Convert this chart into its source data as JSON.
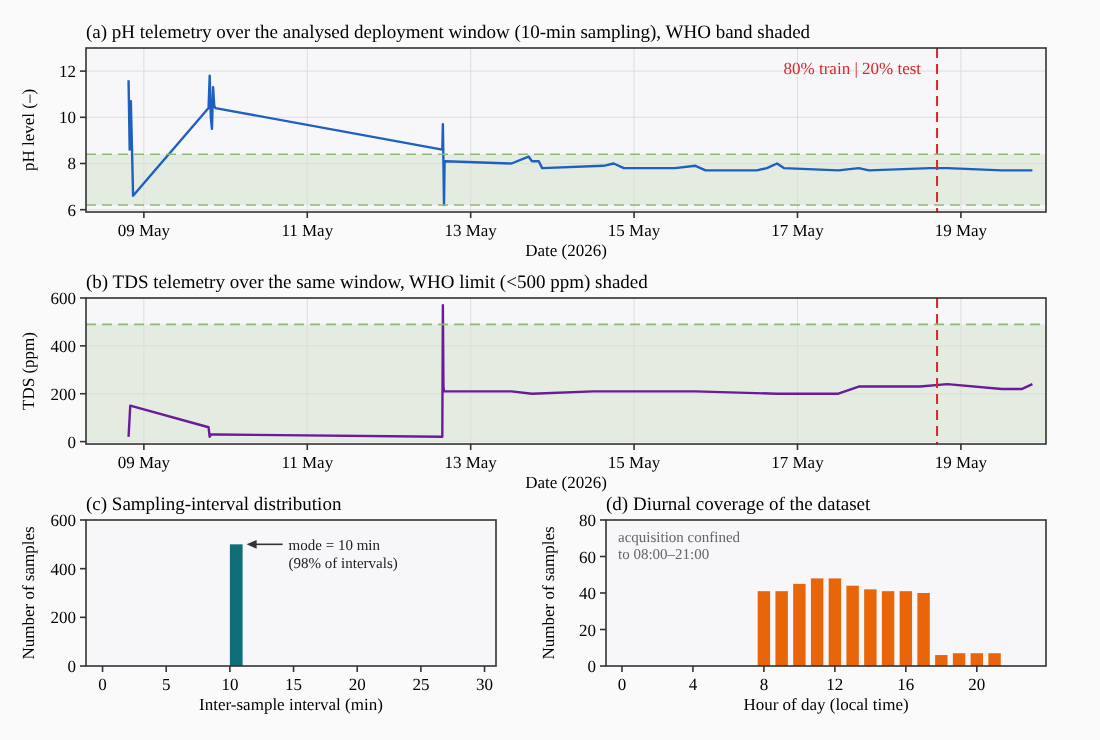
{
  "chart_data": [
    {
      "type": "line",
      "title": "(a) pH telemetry over the analysed deployment window (10-min sampling), WHO band shaded",
      "xlabel": "Date (2026)",
      "ylabel": "pH level (–)",
      "xlim": [
        "2026-05-08T07:00",
        "2026-05-20T01:00"
      ],
      "xticks": [
        {
          "value": "2026-05-09",
          "label": "09 May"
        },
        {
          "value": "2026-05-11",
          "label": "11 May"
        },
        {
          "value": "2026-05-13",
          "label": "13 May"
        },
        {
          "value": "2026-05-15",
          "label": "15 May"
        },
        {
          "value": "2026-05-17",
          "label": "17 May"
        },
        {
          "value": "2026-05-19",
          "label": "19 May"
        }
      ],
      "ylim": [
        5.9,
        13
      ],
      "yticks": [
        6,
        8,
        10,
        12
      ],
      "grid": true,
      "line_style": "solid",
      "series": [
        {
          "color": "#1f5fbf",
          "x": [
            "2026-05-08T19:30",
            "2026-05-08T19:50",
            "2026-05-08T20:10",
            "2026-05-08T20:30",
            "2026-05-08T20:50",
            "2026-05-09T19:00",
            "2026-05-09T19:20",
            "2026-05-09T19:40",
            "2026-05-09T20:00",
            "2026-05-09T20:20",
            "2026-05-09T20:40",
            "2026-05-09T21:00",
            "2026-05-12T15:40",
            "2026-05-12T15:50",
            "2026-05-12T16:00",
            "2026-05-12T16:10",
            "2026-05-12T16:20",
            "2026-05-12T16:40",
            "2026-05-13T12:00",
            "2026-05-13T17:00",
            "2026-05-13T18:00",
            "2026-05-13T20:00",
            "2026-05-13T21:00",
            "2026-05-14T15:00",
            "2026-05-14T18:00",
            "2026-05-14T21:00",
            "2026-05-15T12:00",
            "2026-05-15T18:00",
            "2026-05-15T21:00",
            "2026-05-16T12:00",
            "2026-05-16T15:00",
            "2026-05-16T18:00",
            "2026-05-16T20:00",
            "2026-05-17T12:00",
            "2026-05-17T18:00",
            "2026-05-17T21:00",
            "2026-05-18T15:00",
            "2026-05-18T18:00",
            "2026-05-18T20:00",
            "2026-05-19T12:00",
            "2026-05-19T21:00"
          ],
          "values": [
            11.6,
            8.6,
            10.7,
            8.7,
            6.6,
            10.4,
            11.8,
            10.0,
            9.5,
            11.3,
            10.5,
            10.4,
            8.6,
            9.7,
            8.0,
            6.2,
            8.1,
            8.1,
            8.0,
            8.3,
            8.1,
            8.1,
            7.8,
            7.9,
            8.0,
            7.8,
            7.8,
            7.9,
            7.7,
            7.7,
            7.8,
            8.0,
            7.8,
            7.7,
            7.8,
            7.7,
            7.8,
            7.8,
            7.8,
            7.7,
            7.7
          ]
        }
      ],
      "bands": [
        {
          "axis": "y",
          "from": 6.2,
          "to": 8.4,
          "color": "#e4ebe1"
        }
      ],
      "ref_lines": [
        {
          "axis": "x",
          "value": "2026-05-18T17:00",
          "label": "80% train | 20% test",
          "color": "#d62728",
          "line_style": "dashed"
        },
        {
          "axis": "y",
          "value": 8.4,
          "color": "#8fb87a",
          "line_style": "dashed"
        },
        {
          "axis": "y",
          "value": 6.2,
          "color": "#8fb87a",
          "line_style": "dashed"
        }
      ]
    },
    {
      "type": "line",
      "title": "(b) TDS telemetry over the same window, WHO limit (<500 ppm) shaded",
      "xlabel": "Date (2026)",
      "ylabel": "TDS (ppm)",
      "xlim": [
        "2026-05-08T07:00",
        "2026-05-20T01:00"
      ],
      "xticks": [
        {
          "value": "2026-05-09",
          "label": "09 May"
        },
        {
          "value": "2026-05-11",
          "label": "11 May"
        },
        {
          "value": "2026-05-13",
          "label": "13 May"
        },
        {
          "value": "2026-05-15",
          "label": "15 May"
        },
        {
          "value": "2026-05-17",
          "label": "17 May"
        },
        {
          "value": "2026-05-19",
          "label": "19 May"
        }
      ],
      "ylim": [
        -10,
        600
      ],
      "yticks": [
        0,
        200,
        400,
        600
      ],
      "grid": true,
      "line_style": "solid",
      "series": [
        {
          "color": "#6a1b9a",
          "x": [
            "2026-05-08T19:30",
            "2026-05-08T20:00",
            "2026-05-09T19:00",
            "2026-05-09T19:20",
            "2026-05-09T19:40",
            "2026-05-09T21:00",
            "2026-05-12T15:40",
            "2026-05-12T15:50",
            "2026-05-12T16:00",
            "2026-05-12T16:10",
            "2026-05-13T12:00",
            "2026-05-13T18:00",
            "2026-05-14T12:00",
            "2026-05-15T18:00",
            "2026-05-16T18:00",
            "2026-05-17T12:00",
            "2026-05-17T18:00",
            "2026-05-18T12:00",
            "2026-05-18T20:00",
            "2026-05-19T12:00",
            "2026-05-19T18:00",
            "2026-05-19T21:00"
          ],
          "values": [
            20,
            150,
            60,
            20,
            30,
            30,
            20,
            570,
            230,
            210,
            210,
            200,
            210,
            210,
            200,
            200,
            230,
            230,
            240,
            220,
            220,
            240
          ]
        }
      ],
      "bands": [
        {
          "axis": "y",
          "from": 0,
          "to": 490,
          "color": "#e4ebe1"
        }
      ],
      "ref_lines": [
        {
          "axis": "x",
          "value": "2026-05-18T17:00",
          "color": "#d62728",
          "line_style": "dashed"
        },
        {
          "axis": "y",
          "value": 490,
          "color": "#8fb87a",
          "line_style": "dashed"
        }
      ]
    },
    {
      "type": "histogram",
      "title": "(c) Sampling-interval distribution",
      "xlabel": "Inter-sample interval (min)",
      "ylabel": "Number of samples",
      "xlim": [
        -1.3,
        30.9
      ],
      "xticks": [
        0,
        5,
        10,
        15,
        20,
        25,
        30
      ],
      "ylim": [
        0,
        600
      ],
      "yticks": [
        0,
        200,
        400,
        600
      ],
      "bins": [
        10,
        11
      ],
      "values": [
        500
      ],
      "color": "#0f6e78",
      "annotations": [
        {
          "text": "mode = 10 min\n(98% of intervals)",
          "x": 11,
          "y": 500
        }
      ]
    },
    {
      "type": "bar",
      "title": "(d) Diurnal coverage of the dataset",
      "xlabel": "Hour of day (local time)",
      "ylabel": "Number of samples",
      "xlim": [
        -0.9,
        23.9
      ],
      "xticks": [
        0,
        4,
        8,
        12,
        16,
        20
      ],
      "ylim": [
        0,
        80
      ],
      "yticks": [
        0,
        20,
        40,
        60,
        80
      ],
      "x": [
        8,
        9,
        10,
        11,
        12,
        13,
        14,
        15,
        16,
        17,
        18,
        19,
        20,
        21
      ],
      "values": [
        41,
        41,
        45,
        48,
        48,
        44,
        42,
        41,
        41,
        40,
        6,
        7,
        7,
        7
      ],
      "color": "#e8650a",
      "annotations": [
        "acquisition confined\nto 08:00–21:00"
      ]
    }
  ]
}
